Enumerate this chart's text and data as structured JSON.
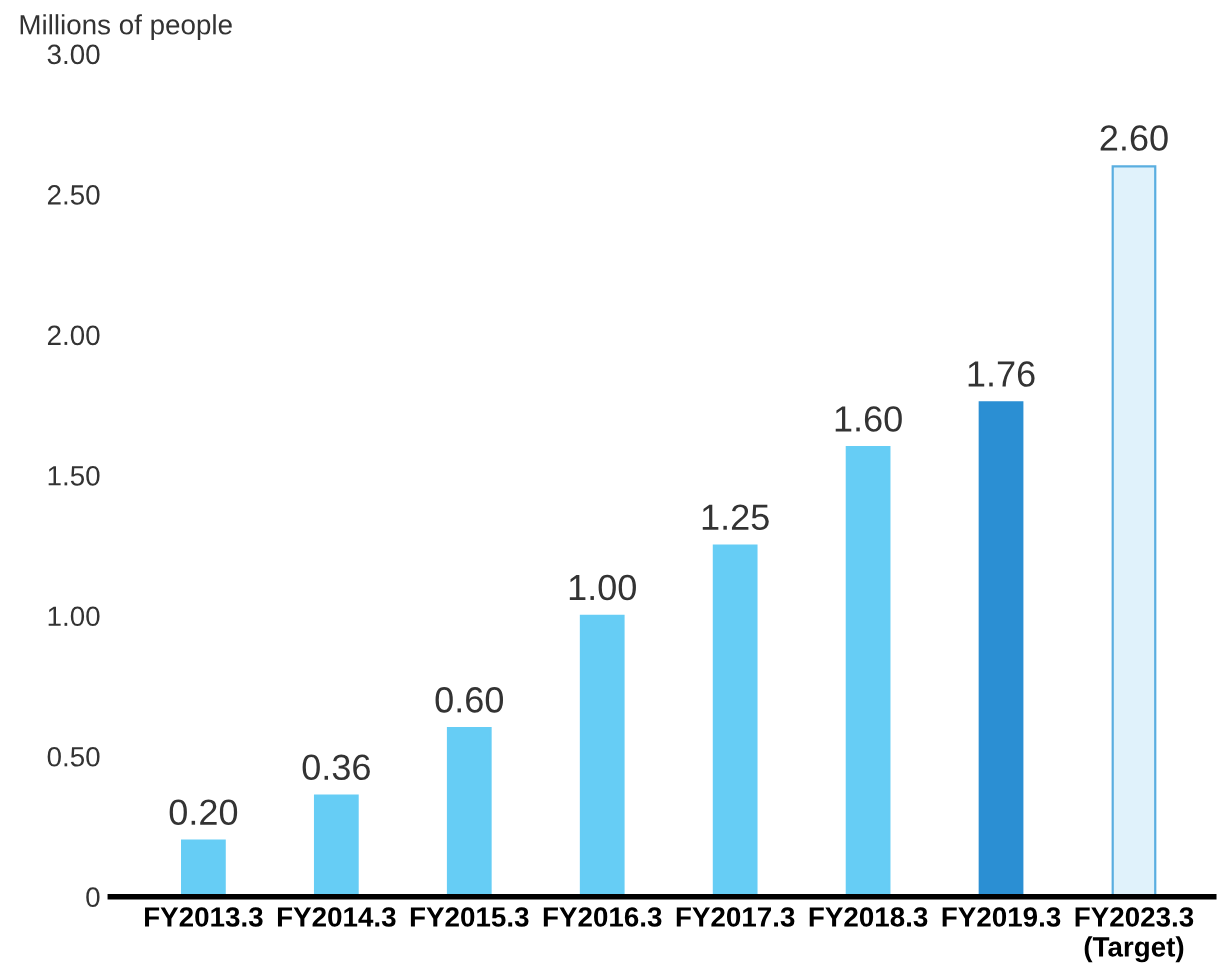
{
  "chart_data": {
    "type": "bar",
    "ylabel": "Millions of people",
    "categories": [
      "FY2013.3",
      "FY2014.3",
      "FY2015.3",
      "FY2016.3",
      "FY2017.3",
      "FY2018.3",
      "FY2019.3",
      "FY2023.3\n(Target)"
    ],
    "values": [
      0.2,
      0.36,
      0.6,
      1.0,
      1.25,
      1.6,
      1.76,
      2.6
    ],
    "value_labels": [
      "0.20",
      "0.36",
      "0.60",
      "1.00",
      "1.25",
      "1.60",
      "1.76",
      "2.60"
    ],
    "colors": [
      "#66cdf5",
      "#66cdf5",
      "#66cdf5",
      "#66cdf5",
      "#66cdf5",
      "#66cdf5",
      "#2b8fd3",
      "#e0f2fb"
    ],
    "ylim": [
      0,
      3.0
    ],
    "yticks": [
      0,
      {
        "value": 0.5,
        "label": "0.50"
      },
      {
        "value": 1.0,
        "label": "1.00"
      },
      {
        "value": 1.5,
        "label": "1.50"
      },
      {
        "value": 2.0,
        "label": "2.00"
      },
      {
        "value": 2.5,
        "label": "2.50"
      },
      {
        "value": 3.0,
        "label": "3.00"
      }
    ],
    "grid": false,
    "legend": false
  }
}
